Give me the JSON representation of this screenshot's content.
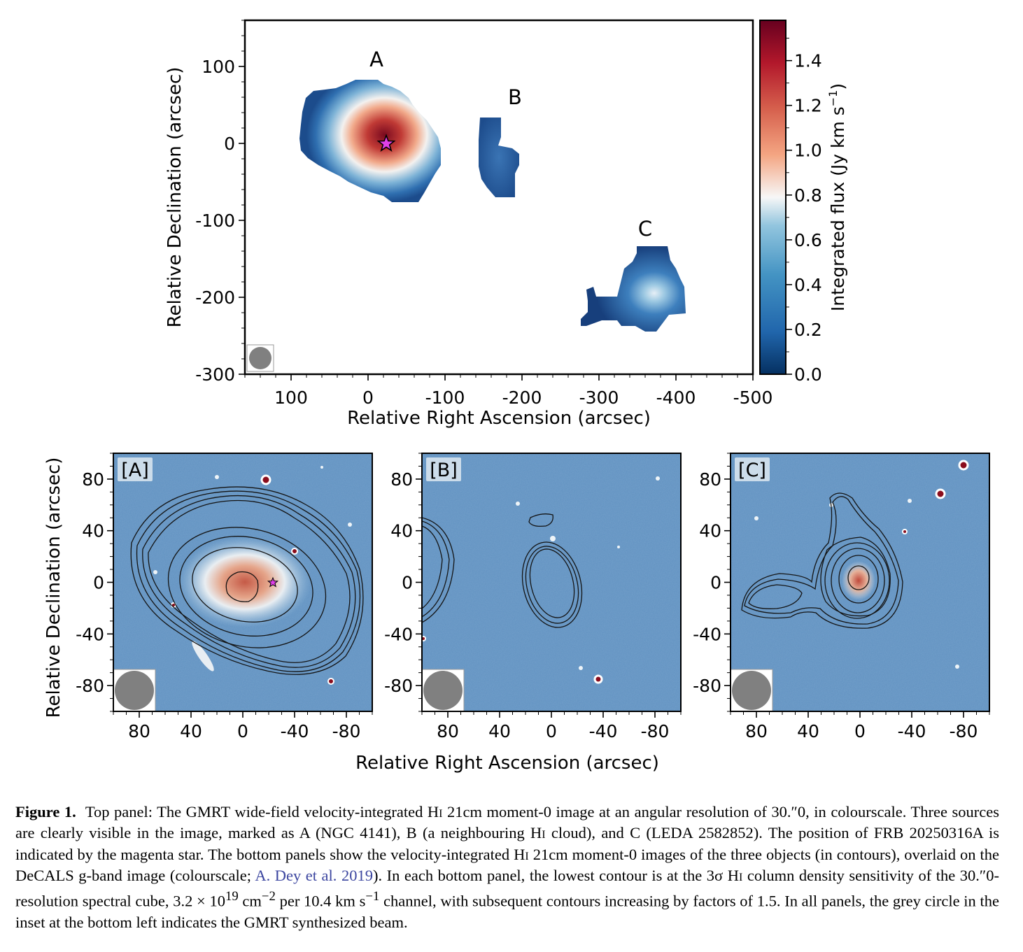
{
  "top_panel": {
    "xlabel": "Relative Right Ascension (arcsec)",
    "ylabel": "Relative Declination (arcsec)",
    "xticks": [
      "100",
      "0",
      "-100",
      "-200",
      "-300",
      "-400",
      "-500"
    ],
    "yticks": [
      "100",
      "0",
      "-100",
      "-200",
      "-300"
    ],
    "xlim": [
      160,
      -500
    ],
    "ylim": [
      -300,
      160
    ],
    "source_labels": [
      "A",
      "B",
      "C"
    ],
    "colorbar": {
      "label": "Integrated flux (Jy km s",
      "label_sup": "−1",
      "label_close": ")",
      "ticks": [
        "0.0",
        "0.2",
        "0.4",
        "0.6",
        "0.8",
        "1.0",
        "1.2",
        "1.4"
      ],
      "range": [
        0.0,
        1.58
      ],
      "colormap": "RdBu_r"
    },
    "frb_marker_color": "#e040e8"
  },
  "bottom_panels": {
    "xlabel": "Relative Right Ascension (arcsec)",
    "ylabel": "Relative Declination (arcsec)",
    "xticks": [
      "80",
      "40",
      "0",
      "-40",
      "-80"
    ],
    "yticks": [
      "80",
      "40",
      "0",
      "-40",
      "-80"
    ],
    "panels": [
      {
        "tag": "[A]"
      },
      {
        "tag": "[B]"
      },
      {
        "tag": "[C]"
      }
    ],
    "background_color": "#5f90c0",
    "contour_color": "#141414",
    "beam_color": "#808080"
  },
  "caption": {
    "label": "Figure 1.",
    "seg1": "Top panel: The GMRT wide-field velocity-integrated H",
    "hi": "i",
    "seg2": " 21cm moment-0 image at an angular resolution of 30.″0, in colourscale. Three sources are clearly visible in the image, marked as A (NGC 4141), B (a neighbouring H",
    "seg3": " cloud), and C (LEDA 2582852). The position of FRB 20250316A is indicated by the magenta star. The bottom panels show the velocity-integrated H",
    "seg4": " 21cm moment-0 images of the three objects (in contours), overlaid on the DeCALS g-band image (colourscale; ",
    "ref": "A. Dey et al. 2019",
    "seg5": "). In each bottom panel, the lowest contour is at the 3σ H",
    "seg6": " column density sensitivity of the 30.″0-resolution spectral cube, 3.2 × 10",
    "exp1": "19",
    "seg7": " cm",
    "exp2": "−2",
    "seg8": " per 10.4 km s",
    "exp3": "−1",
    "seg9": " channel, with subsequent contours increasing by factors of 1.5. In all panels, the grey circle in the inset at the bottom left indicates the GMRT synthesized beam."
  }
}
